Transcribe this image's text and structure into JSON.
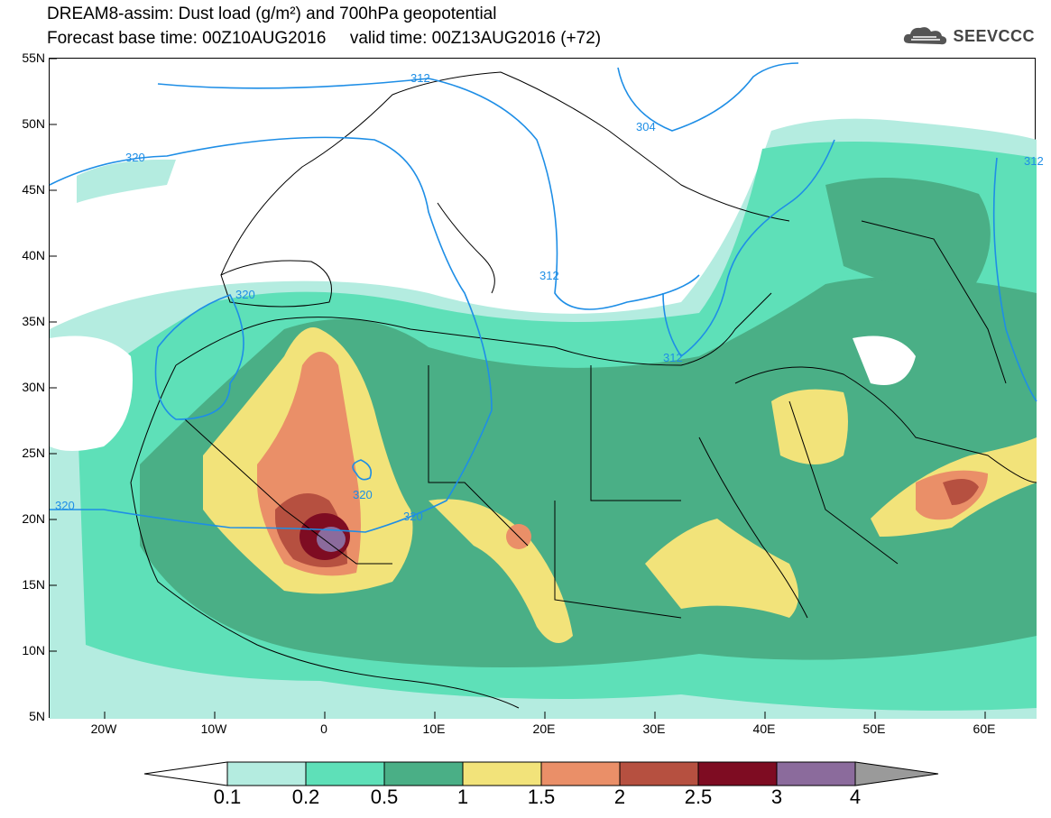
{
  "title_line1": "DREAM8-assim: Dust load (g/m²) and 700hPa geopotential",
  "title_line2": "Forecast base time: 00Z10AUG2016     valid time: 00Z13AUG2016 (+72)",
  "logo_text": "SEEVCCC",
  "y_axis_labels": [
    "55N",
    "50N",
    "45N",
    "40N",
    "35N",
    "30N",
    "25N",
    "20N",
    "15N",
    "10N",
    "5N"
  ],
  "x_axis_labels": [
    "20W",
    "10W",
    "0",
    "10E",
    "20E",
    "30E",
    "40E",
    "50E",
    "60E"
  ],
  "contour_labels": [
    "312",
    "304",
    "320",
    "320",
    "312",
    "312",
    "320",
    "320",
    "320",
    "312"
  ],
  "legend": {
    "thresholds": [
      "0.1",
      "0.2",
      "0.5",
      "1",
      "1.5",
      "2",
      "2.5",
      "3",
      "4"
    ],
    "colors": [
      "#b4ece0",
      "#5ee0b8",
      "#4aaf86",
      "#f2e37a",
      "#ea8f68",
      "#b65040",
      "#7e0c22",
      "#8b6b9c",
      "#9a9a9a"
    ]
  },
  "map_colors": {
    "ocean": "#ffffff",
    "contour": "#1e8ee6",
    "border": "#000000"
  }
}
